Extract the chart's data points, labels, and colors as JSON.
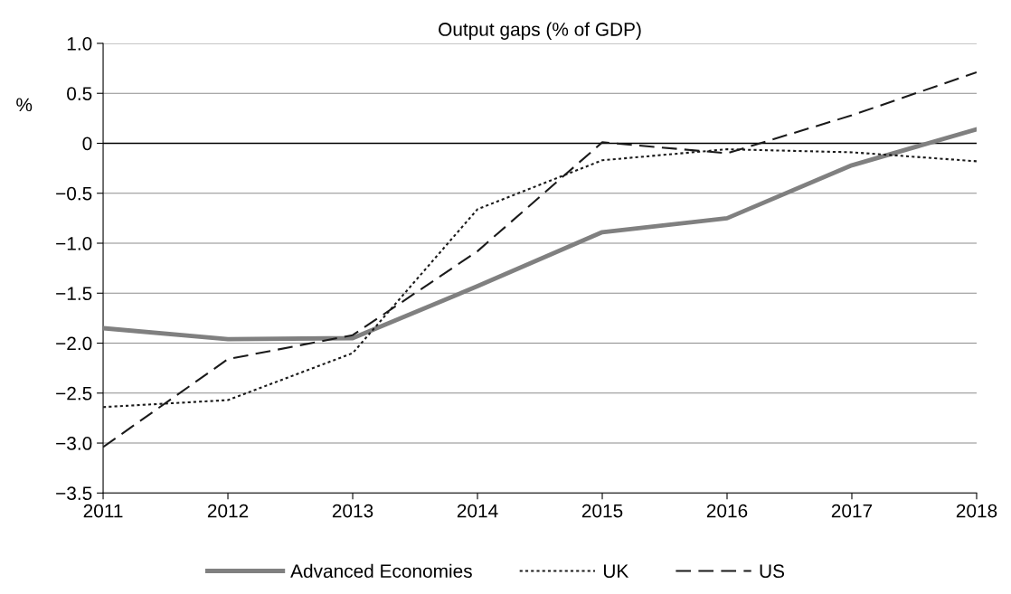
{
  "chart_data": {
    "type": "line",
    "title": "Output gaps (% of GDP)",
    "ylabel": "%",
    "x": [
      2011,
      2012,
      2013,
      2014,
      2015,
      2016,
      2017,
      2018
    ],
    "series": [
      {
        "name": "Advanced Economies",
        "color": "#808080",
        "line_style": "solid",
        "values": [
          -1.85,
          -1.96,
          -1.95,
          -1.43,
          -0.89,
          -0.75,
          -0.22,
          0.14
        ]
      },
      {
        "name": "UK",
        "color": "#1a1a1a",
        "line_style": "dotted",
        "values": [
          -2.64,
          -2.57,
          -2.1,
          -0.66,
          -0.17,
          -0.06,
          -0.09,
          -0.18
        ]
      },
      {
        "name": "US",
        "color": "#1a1a1a",
        "line_style": "dashed",
        "values": [
          -3.04,
          -2.16,
          -1.92,
          -1.08,
          0.01,
          -0.1,
          0.28,
          0.71
        ]
      }
    ],
    "xlim": [
      2011,
      2018
    ],
    "xticks": [
      2011,
      2012,
      2013,
      2014,
      2015,
      2016,
      2017,
      2018
    ],
    "ylim": [
      -3.5,
      1.0
    ],
    "yticks": [
      {
        "value": 1.0,
        "label": "1.0"
      },
      {
        "value": 0.5,
        "label": "0.5"
      },
      0,
      {
        "value": -0.5,
        "label": "−0.5"
      },
      {
        "value": -1.0,
        "label": "−1.0"
      },
      {
        "value": -1.5,
        "label": "−1.5"
      },
      {
        "value": -2.0,
        "label": "−2.0"
      },
      {
        "value": -2.5,
        "label": "−2.5"
      },
      {
        "value": -3.0,
        "label": "−3.0"
      },
      {
        "value": -3.5,
        "label": "−3.5"
      }
    ],
    "ref_lines": [
      {
        "axis": "y",
        "value": 0,
        "label": null,
        "color": "#000000"
      }
    ],
    "grid": "y",
    "legend": "bottom",
    "marker": "none"
  }
}
